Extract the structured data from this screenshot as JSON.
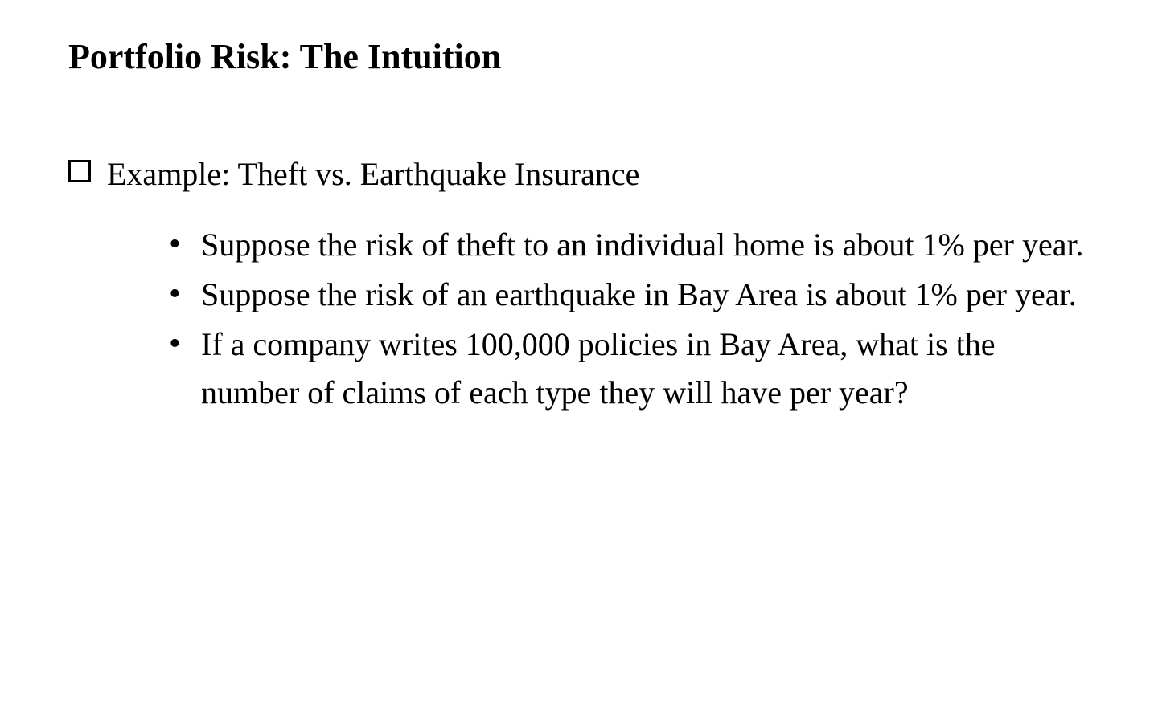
{
  "slide": {
    "title": "Portfolio Risk: The Intuition",
    "main_bullet": "Example: Theft vs. Earthquake Insurance",
    "sub_bullets": [
      "Suppose the risk of theft to an individual home is about 1% per year.",
      "Suppose the risk of an earthquake in Bay Area is about 1% per year.",
      "If a company writes 100,000 policies in Bay Area, what is the number of claims of each type they will have per year?"
    ]
  },
  "style": {
    "background_color": "#ffffff",
    "text_color": "#000000",
    "title_fontsize": 44,
    "title_fontweight": "bold",
    "body_fontsize": 40,
    "font_family": "Times New Roman",
    "main_bullet_marker": "hollow-square",
    "sub_bullet_marker": "disc"
  }
}
